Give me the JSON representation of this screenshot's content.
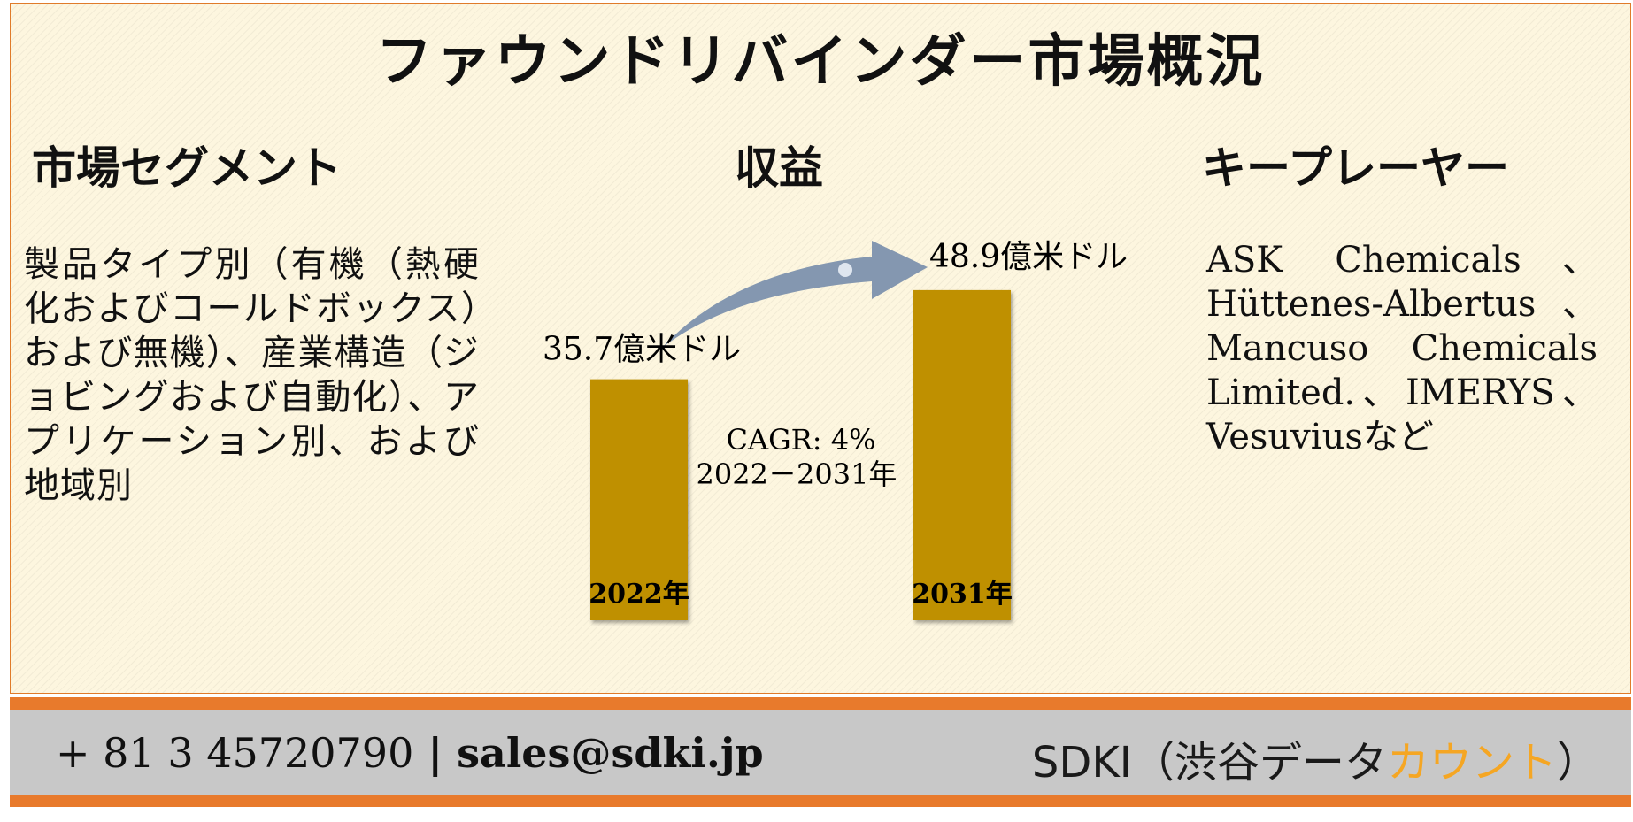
{
  "title": "ファウンドリバインダー市場概況",
  "segments": {
    "heading": "市場セグメント",
    "text": "製品タイプ別（有機（熱硬化およびコールドボックス）および無機）、産業構造（ジョビングおよび自動化）、アプリケーション別、および地域別"
  },
  "revenue": {
    "heading": "収益",
    "cagr_line1": "CAGR: 4%",
    "cagr_line2": "2022－2031年"
  },
  "players": {
    "heading": "キープレーヤー",
    "text": "ASK Chemicals、Hüttenes-Albertus、Mancuso Chemicals Limited.、IMERYS、Vesuviusなど"
  },
  "chart_data": {
    "type": "bar",
    "categories": [
      "2022年",
      "2031年"
    ],
    "values": [
      35.7,
      48.9
    ],
    "value_labels": [
      "35.7億米ドル",
      "48.9億米ドル"
    ],
    "bar_color": "#bf9000",
    "arrow_color": "#8497b0"
  },
  "footer": {
    "phone": "+ 81 3 45720790",
    "separator": "|",
    "email": "sales@sdki.jp",
    "brand_main": "SDKI（渋谷データ",
    "brand_accent": "カウント",
    "brand_close": "）"
  },
  "colors": {
    "accent_orange": "#e87a2c",
    "brand_accent": "#f5a623",
    "panel_bg": "#fdf6df",
    "footer_bg": "#c8c8c8"
  }
}
